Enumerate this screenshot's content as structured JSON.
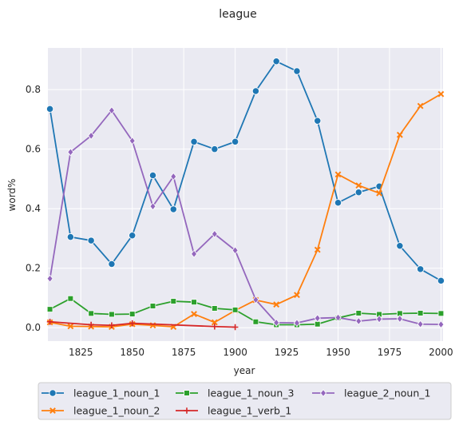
{
  "chart_data": {
    "type": "line",
    "title": "league",
    "xlabel": "year",
    "ylabel": "word%",
    "xlim": [
      1809,
      2001
    ],
    "ylim": [
      -0.045,
      0.94
    ],
    "xticks": [
      1825,
      1850,
      1875,
      1900,
      1925,
      1950,
      1975,
      2000
    ],
    "yticks": [
      0.0,
      0.2,
      0.4,
      0.6,
      0.8
    ],
    "ytick_labels": [
      "0.0",
      "0.2",
      "0.4",
      "0.6",
      "0.8"
    ],
    "grid": true,
    "legend_position": "bottom",
    "series": [
      {
        "name": "league_1_noun_1",
        "color": "#1f77b4",
        "marker": "circle",
        "x": [
          1810,
          1820,
          1830,
          1840,
          1850,
          1860,
          1870,
          1880,
          1890,
          1900,
          1910,
          1920,
          1930,
          1940,
          1950,
          1960,
          1970,
          1980,
          1990,
          2000
        ],
        "values": [
          0.735,
          0.305,
          0.293,
          0.214,
          0.31,
          0.512,
          0.398,
          0.625,
          0.6,
          0.625,
          0.795,
          0.895,
          0.862,
          0.695,
          0.42,
          0.455,
          0.475,
          0.275,
          0.197,
          0.158
        ]
      },
      {
        "name": "league_1_noun_2",
        "color": "#ff7f0e",
        "marker": "x",
        "x": [
          1810,
          1820,
          1830,
          1840,
          1850,
          1860,
          1870,
          1880,
          1890,
          1900,
          1910,
          1920,
          1930,
          1940,
          1950,
          1960,
          1970,
          1980,
          1990,
          2000
        ],
        "values": [
          0.018,
          0.005,
          0.004,
          0.003,
          0.012,
          0.008,
          0.003,
          0.046,
          0.018,
          0.058,
          0.093,
          0.078,
          0.11,
          0.262,
          0.515,
          0.478,
          0.452,
          0.648,
          0.745,
          0.785
        ]
      },
      {
        "name": "league_1_noun_3",
        "color": "#2ca02c",
        "marker": "square",
        "x": [
          1810,
          1820,
          1830,
          1840,
          1850,
          1860,
          1870,
          1880,
          1890,
          1900,
          1910,
          1920,
          1930,
          1940,
          1950,
          1960,
          1970,
          1980,
          1990,
          2000
        ],
        "values": [
          0.062,
          0.098,
          0.048,
          0.045,
          0.046,
          0.073,
          0.089,
          0.086,
          0.065,
          0.06,
          0.02,
          0.01,
          0.01,
          0.012,
          0.033,
          0.049,
          0.045,
          0.048,
          0.049,
          0.048
        ]
      },
      {
        "name": "league_1_verb_1",
        "color": "#d62728",
        "marker": "plus",
        "x": [
          1810,
          1830,
          1840,
          1850,
          1890,
          1900
        ],
        "values": [
          0.02,
          0.01,
          0.008,
          0.015,
          0.004,
          0.002
        ]
      },
      {
        "name": "league_2_noun_1",
        "color": "#9467bd",
        "marker": "diamond",
        "x": [
          1810,
          1820,
          1830,
          1840,
          1850,
          1860,
          1870,
          1880,
          1890,
          1900,
          1910,
          1920,
          1930,
          1940,
          1950,
          1960,
          1970,
          1980,
          1990,
          2000
        ],
        "values": [
          0.165,
          0.59,
          0.645,
          0.73,
          0.628,
          0.408,
          0.508,
          0.248,
          0.315,
          0.26,
          0.094,
          0.017,
          0.016,
          0.032,
          0.034,
          0.022,
          0.029,
          0.03,
          0.012,
          0.011
        ]
      }
    ]
  }
}
